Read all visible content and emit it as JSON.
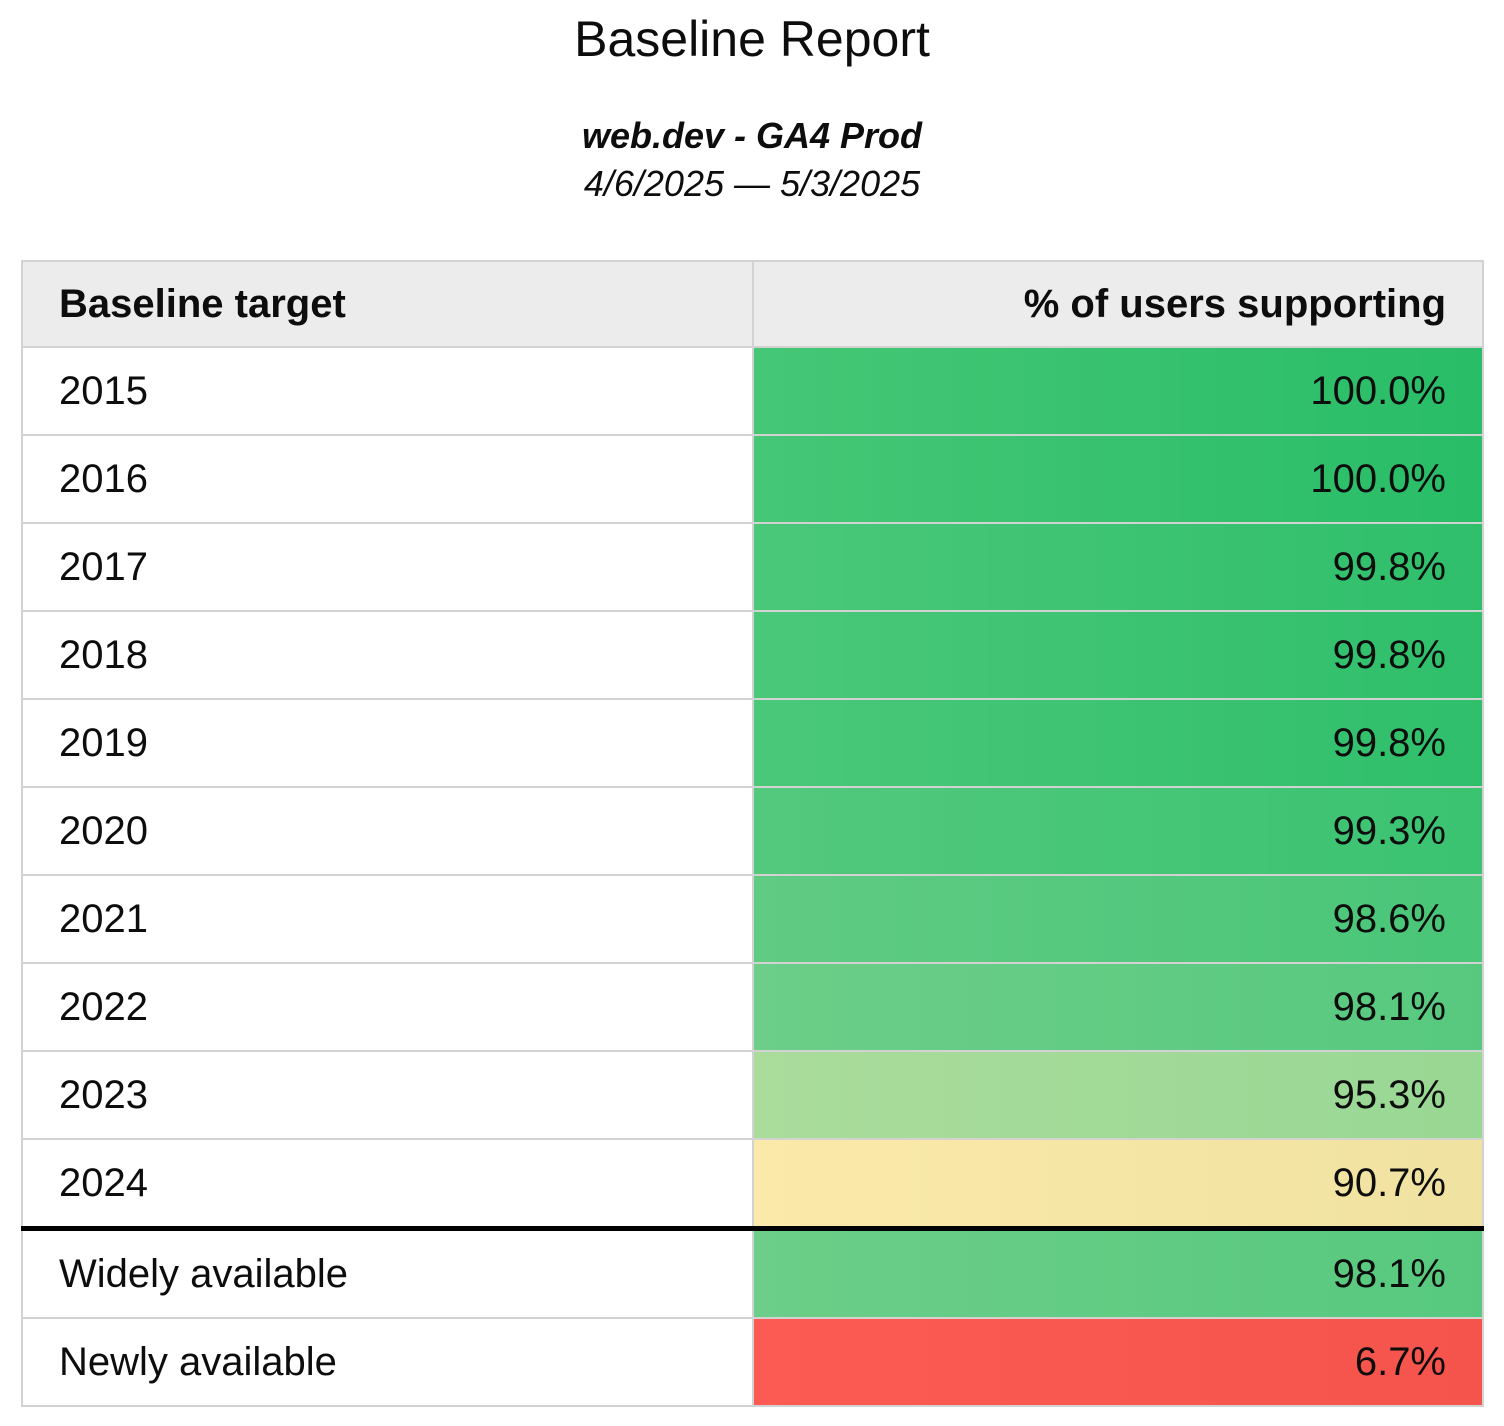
{
  "header": {
    "title": "Baseline Report",
    "subtitle": "web.dev - GA4 Prod",
    "date_range": "4/6/2025 — 5/3/2025"
  },
  "colors": {
    "header_bg": "#ECECEC",
    "grid_border": "#D2D2D2",
    "section_divider": "#000000",
    "text": "#0D0D0D"
  },
  "table": {
    "columns": [
      {
        "label": "Baseline target",
        "align": "left"
      },
      {
        "label": "% of users supporting",
        "align": "right"
      }
    ],
    "rows": [
      {
        "label": "2015",
        "value": "100.0%",
        "cell_colors": [
          "#45C776",
          "#29BD67"
        ],
        "divider_above": false
      },
      {
        "label": "2016",
        "value": "100.0%",
        "cell_colors": [
          "#45C776",
          "#29BD67"
        ],
        "divider_above": false
      },
      {
        "label": "2017",
        "value": "99.8%",
        "cell_colors": [
          "#4AC879",
          "#2FBF6B"
        ],
        "divider_above": false
      },
      {
        "label": "2018",
        "value": "99.8%",
        "cell_colors": [
          "#4AC879",
          "#2FBF6B"
        ],
        "divider_above": false
      },
      {
        "label": "2019",
        "value": "99.8%",
        "cell_colors": [
          "#4AC879",
          "#2FBF6B"
        ],
        "divider_above": false
      },
      {
        "label": "2020",
        "value": "99.3%",
        "cell_colors": [
          "#53C97D",
          "#3AC371"
        ],
        "divider_above": false
      },
      {
        "label": "2021",
        "value": "98.6%",
        "cell_colors": [
          "#60CB83",
          "#49C678"
        ],
        "divider_above": false
      },
      {
        "label": "2022",
        "value": "98.1%",
        "cell_colors": [
          "#6CCE88",
          "#57C97E"
        ],
        "divider_above": false
      },
      {
        "label": "2023",
        "value": "95.3%",
        "cell_colors": [
          "#AADC9C",
          "#99D794"
        ],
        "divider_above": false
      },
      {
        "label": "2024",
        "value": "90.7%",
        "cell_colors": [
          "#FBE9A9",
          "#F0E2A1"
        ],
        "divider_above": false
      },
      {
        "label": "Widely available",
        "value": "98.1%",
        "cell_colors": [
          "#6CCE88",
          "#57C97E"
        ],
        "divider_above": true
      },
      {
        "label": "Newly available",
        "value": "6.7%",
        "cell_colors": [
          "#FB5B53",
          "#F5544C"
        ],
        "divider_above": false
      }
    ]
  }
}
